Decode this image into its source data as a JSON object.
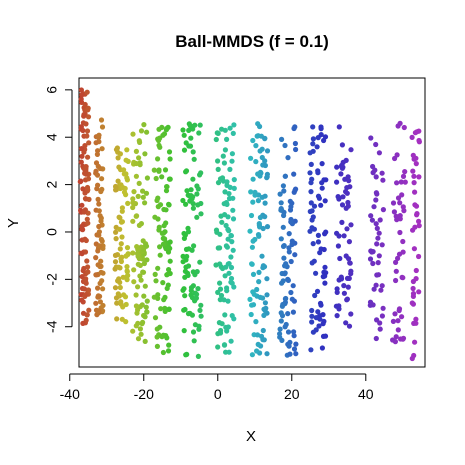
{
  "chart_data": {
    "type": "scatter",
    "title": "Ball-MMDS (f = 0.1)",
    "xlabel": "X",
    "ylabel": "Y",
    "xlim": [
      -37.5,
      56
    ],
    "ylim": [
      -5.7,
      6.5
    ],
    "xticks": [
      -40,
      -20,
      0,
      20,
      40
    ],
    "yticks": [
      -4,
      -2,
      0,
      2,
      4,
      6
    ],
    "xtick_labels": [
      "-40",
      "-20",
      "0",
      "20",
      "40"
    ],
    "ytick_labels": [
      "-4",
      "-2",
      "0",
      "2",
      "4",
      "6"
    ],
    "grid": false,
    "legend": "none",
    "color_mapping": "hue varies with X: red at -36, yellow/olive near -26, green near -12, teal near 5, blue near 25, purple near 55",
    "point_count_estimate": 900,
    "bands": [
      {
        "x_center": -36,
        "x_spread": 1.2,
        "y_range": [
          -3.9,
          6.1
        ],
        "count": 110
      },
      {
        "x_center": -32,
        "x_spread": 1.0,
        "y_range": [
          -3.5,
          4.8
        ],
        "count": 70
      },
      {
        "x_center": -26,
        "x_spread": 1.8,
        "y_range": [
          -3.8,
          3.6
        ],
        "count": 80
      },
      {
        "x_center": -21,
        "x_spread": 2.0,
        "y_range": [
          -4.8,
          4.7
        ],
        "count": 85
      },
      {
        "x_center": -15,
        "x_spread": 2.2,
        "y_range": [
          -5.1,
          4.7
        ],
        "count": 90
      },
      {
        "x_center": -7,
        "x_spread": 2.5,
        "y_range": [
          -5.3,
          4.6
        ],
        "count": 95
      },
      {
        "x_center": 2,
        "x_spread": 2.5,
        "y_range": [
          -5.3,
          4.6
        ],
        "count": 95
      },
      {
        "x_center": 11,
        "x_spread": 2.5,
        "y_range": [
          -5.3,
          4.6
        ],
        "count": 90
      },
      {
        "x_center": 19,
        "x_spread": 2.3,
        "y_range": [
          -5.3,
          4.6
        ],
        "count": 85
      },
      {
        "x_center": 27,
        "x_spread": 2.2,
        "y_range": [
          -5.2,
          4.5
        ],
        "count": 75
      },
      {
        "x_center": 34,
        "x_spread": 2.0,
        "y_range": [
          -4.5,
          4.5
        ],
        "count": 60
      },
      {
        "x_center": 43,
        "x_spread": 1.8,
        "y_range": [
          -4.5,
          4.7
        ],
        "count": 45
      },
      {
        "x_center": 49,
        "x_spread": 1.8,
        "y_range": [
          -4.8,
          4.6
        ],
        "count": 45
      },
      {
        "x_center": 53.5,
        "x_spread": 1.0,
        "y_range": [
          -5.4,
          4.5
        ],
        "count": 40
      }
    ]
  }
}
